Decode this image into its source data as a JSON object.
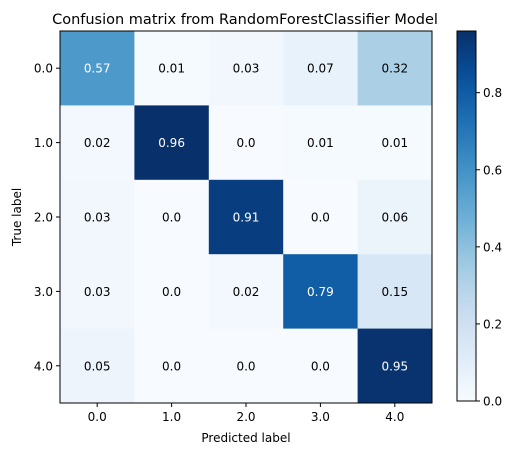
{
  "chart_data": {
    "type": "heatmap",
    "title": "Confusion matrix from RandomForestClassifier Model",
    "xlabel": "Predicted label",
    "ylabel": "True label",
    "x_categories": [
      "0.0",
      "1.0",
      "2.0",
      "3.0",
      "4.0"
    ],
    "y_categories": [
      "0.0",
      "1.0",
      "2.0",
      "3.0",
      "4.0"
    ],
    "values": [
      [
        0.57,
        0.01,
        0.03,
        0.07,
        0.32
      ],
      [
        0.02,
        0.96,
        0.0,
        0.01,
        0.01
      ],
      [
        0.03,
        0.0,
        0.91,
        0.0,
        0.06
      ],
      [
        0.03,
        0.0,
        0.02,
        0.79,
        0.15
      ],
      [
        0.05,
        0.0,
        0.0,
        0.0,
        0.95
      ]
    ],
    "cell_labels": [
      [
        "0.57",
        "0.01",
        "0.03",
        "0.07",
        "0.32"
      ],
      [
        "0.02",
        "0.96",
        "0.0",
        "0.01",
        "0.01"
      ],
      [
        "0.03",
        "0.0",
        "0.91",
        "0.0",
        "0.06"
      ],
      [
        "0.03",
        "0.0",
        "0.02",
        "0.79",
        "0.15"
      ],
      [
        "0.05",
        "0.0",
        "0.0",
        "0.0",
        "0.95"
      ]
    ],
    "colormap": "Blues",
    "color_range": [
      0.0,
      0.96
    ],
    "colorbar_ticks": [
      "0.0",
      "0.2",
      "0.4",
      "0.6",
      "0.8"
    ],
    "colorbar_tick_values": [
      0.0,
      0.2,
      0.4,
      0.6,
      0.8
    ],
    "colorbar": "right"
  }
}
